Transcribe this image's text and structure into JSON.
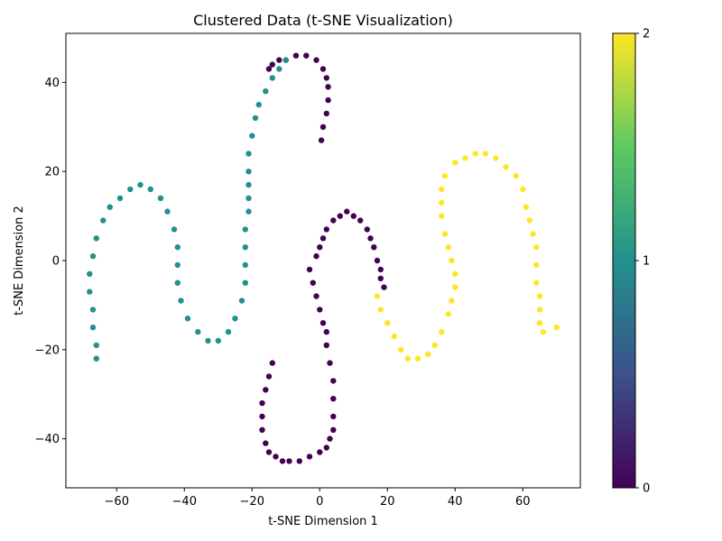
{
  "chart_data": {
    "type": "scatter",
    "title": "Clustered Data (t-SNE Visualization)",
    "xlabel": "t-SNE Dimension 1",
    "ylabel": "t-SNE Dimension 2",
    "xlim": [
      -75,
      77
    ],
    "ylim": [
      -51,
      51
    ],
    "x_ticks": [
      -60,
      -40,
      -20,
      0,
      20,
      40,
      60
    ],
    "y_ticks": [
      -40,
      -20,
      0,
      20,
      40
    ],
    "grid": false,
    "colorbar": {
      "colormap": "viridis",
      "range": [
        0,
        2
      ],
      "ticks": [
        0,
        1,
        2
      ],
      "colors": [
        "#440154",
        "#3b528b",
        "#21918c",
        "#5ec962",
        "#fde725"
      ]
    },
    "series": [
      {
        "cluster": 0,
        "color": "#440154",
        "points": [
          [
            0.5,
            27
          ],
          [
            1,
            30
          ],
          [
            2,
            33
          ],
          [
            2.5,
            36
          ],
          [
            2.5,
            39
          ],
          [
            2,
            41
          ],
          [
            1,
            43
          ],
          [
            -1,
            45
          ],
          [
            -4,
            46
          ],
          [
            -7,
            46
          ],
          [
            -10,
            45
          ],
          [
            -12,
            45
          ],
          [
            -14,
            44
          ],
          [
            -15,
            43
          ],
          [
            -3,
            -2
          ],
          [
            -1,
            1
          ],
          [
            0,
            3
          ],
          [
            1,
            5
          ],
          [
            2,
            7
          ],
          [
            4,
            9
          ],
          [
            6,
            10
          ],
          [
            8,
            11
          ],
          [
            10,
            10
          ],
          [
            12,
            9
          ],
          [
            14,
            7
          ],
          [
            15,
            5
          ],
          [
            16,
            3
          ],
          [
            17,
            0
          ],
          [
            18,
            -2
          ],
          [
            18,
            -4
          ],
          [
            19,
            -6
          ],
          [
            -2,
            -5
          ],
          [
            -1,
            -8
          ],
          [
            0,
            -11
          ],
          [
            1,
            -14
          ],
          [
            2,
            -16
          ],
          [
            2,
            -19
          ],
          [
            3,
            -23
          ],
          [
            4,
            -27
          ],
          [
            4,
            -31
          ],
          [
            4,
            -35
          ],
          [
            4,
            -38
          ],
          [
            3,
            -40
          ],
          [
            2,
            -42
          ],
          [
            0,
            -43
          ],
          [
            -3,
            -44
          ],
          [
            -6,
            -45
          ],
          [
            -9,
            -45
          ],
          [
            -11,
            -45
          ],
          [
            -13,
            -44
          ],
          [
            -15,
            -43
          ],
          [
            -16,
            -41
          ],
          [
            -17,
            -38
          ],
          [
            -17,
            -35
          ],
          [
            -17,
            -32
          ],
          [
            -16,
            -29
          ],
          [
            -15,
            -26
          ],
          [
            -14,
            -23
          ]
        ]
      },
      {
        "cluster": 1,
        "color": "#21918c",
        "points": [
          [
            -66,
            -22
          ],
          [
            -66,
            -19
          ],
          [
            -67,
            -15
          ],
          [
            -67,
            -11
          ],
          [
            -68,
            -7
          ],
          [
            -68,
            -3
          ],
          [
            -67,
            1
          ],
          [
            -66,
            5
          ],
          [
            -64,
            9
          ],
          [
            -62,
            12
          ],
          [
            -59,
            14
          ],
          [
            -56,
            16
          ],
          [
            -53,
            17
          ],
          [
            -50,
            16
          ],
          [
            -47,
            14
          ],
          [
            -45,
            11
          ],
          [
            -43,
            7
          ],
          [
            -42,
            3
          ],
          [
            -42,
            -1
          ],
          [
            -42,
            -5
          ],
          [
            -41,
            -9
          ],
          [
            -39,
            -13
          ],
          [
            -36,
            -16
          ],
          [
            -33,
            -18
          ],
          [
            -30,
            -18
          ],
          [
            -27,
            -16
          ],
          [
            -25,
            -13
          ],
          [
            -23,
            -9
          ],
          [
            -22,
            -5
          ],
          [
            -22,
            -1
          ],
          [
            -22,
            3
          ],
          [
            -22,
            7
          ],
          [
            -21,
            11
          ],
          [
            -21,
            14
          ],
          [
            -21,
            17
          ],
          [
            -21,
            20
          ],
          [
            -21,
            24
          ],
          [
            -20,
            28
          ],
          [
            -19,
            32
          ],
          [
            -18,
            35
          ],
          [
            -16,
            38
          ],
          [
            -14,
            41
          ],
          [
            -12,
            43
          ],
          [
            -10,
            45
          ]
        ]
      },
      {
        "cluster": 2,
        "color": "#fde725",
        "points": [
          [
            17,
            -8
          ],
          [
            18,
            -11
          ],
          [
            20,
            -14
          ],
          [
            22,
            -17
          ],
          [
            24,
            -20
          ],
          [
            26,
            -22
          ],
          [
            29,
            -22
          ],
          [
            32,
            -21
          ],
          [
            34,
            -19
          ],
          [
            36,
            -16
          ],
          [
            38,
            -12
          ],
          [
            39,
            -9
          ],
          [
            40,
            -6
          ],
          [
            40,
            -3
          ],
          [
            39,
            0
          ],
          [
            38,
            3
          ],
          [
            37,
            6
          ],
          [
            36,
            10
          ],
          [
            36,
            13
          ],
          [
            36,
            16
          ],
          [
            37,
            19
          ],
          [
            40,
            22
          ],
          [
            43,
            23
          ],
          [
            46,
            24
          ],
          [
            49,
            24
          ],
          [
            52,
            23
          ],
          [
            55,
            21
          ],
          [
            58,
            19
          ],
          [
            60,
            16
          ],
          [
            61,
            12
          ],
          [
            62,
            9
          ],
          [
            63,
            6
          ],
          [
            64,
            3
          ],
          [
            64,
            -1
          ],
          [
            64,
            -5
          ],
          [
            65,
            -8
          ],
          [
            65,
            -11
          ],
          [
            65,
            -14
          ],
          [
            66,
            -16
          ],
          [
            70,
            -15
          ]
        ]
      }
    ]
  }
}
